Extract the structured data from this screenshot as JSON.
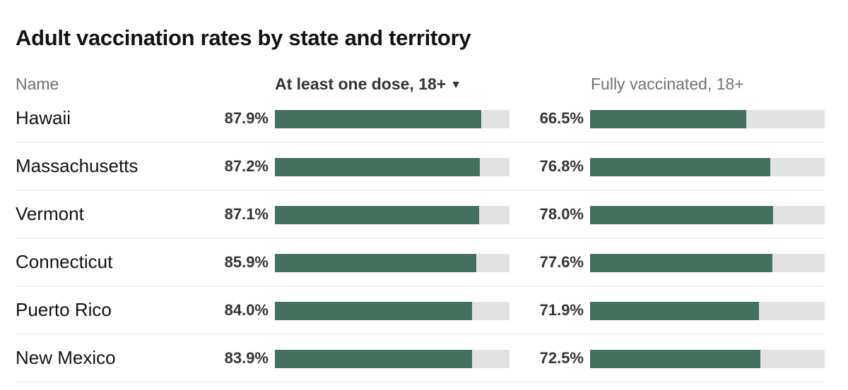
{
  "title": "Adult vaccination rates by state and territory",
  "headers": {
    "name": "Name",
    "dose": "At least one dose, 18+",
    "sort_arrow": "▼",
    "full": "Fully vaccinated, 18+"
  },
  "bar_color": "#44705f",
  "track_color": "#e2e2e2",
  "chart_data": {
    "type": "bar",
    "orientation": "horizontal",
    "categories": [
      "Hawaii",
      "Massachusetts",
      "Vermont",
      "Connecticut",
      "Puerto Rico",
      "New Mexico"
    ],
    "series": [
      {
        "name": "At least one dose, 18+",
        "values": [
          87.9,
          87.2,
          87.1,
          85.9,
          84.0,
          83.9
        ],
        "labels": [
          "87.9%",
          "87.2%",
          "87.1%",
          "85.9%",
          "84.0%",
          "83.9%"
        ]
      },
      {
        "name": "Fully vaccinated, 18+",
        "values": [
          66.5,
          76.8,
          78.0,
          77.6,
          71.9,
          72.5
        ],
        "labels": [
          "66.5%",
          "76.8%",
          "78.0%",
          "77.6%",
          "71.9%",
          "72.5%"
        ]
      }
    ],
    "xlim": [
      0,
      100
    ],
    "sorted_by": "At least one dose, 18+",
    "sort_order": "descending"
  }
}
